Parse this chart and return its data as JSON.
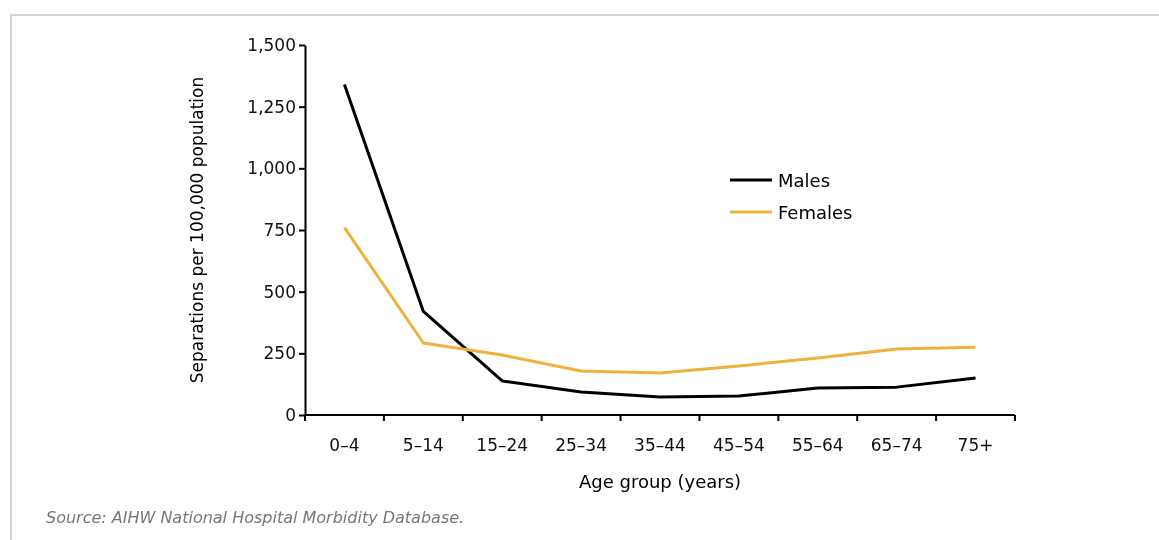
{
  "chart_data": {
    "type": "line",
    "xlabel": "Age group (years)",
    "ylabel": "Separations per 100,000 population",
    "categories": [
      "0–4",
      "5–14",
      "15–24",
      "25–34",
      "35–44",
      "45–54",
      "55–64",
      "65–74",
      "75+"
    ],
    "series": [
      {
        "name": "Males",
        "color": "#000000",
        "values": [
          1340,
          420,
          138,
          93,
          73,
          77,
          109,
          113,
          150
        ]
      },
      {
        "name": "Females",
        "color": "#f0b03c",
        "values": [
          760,
          292,
          243,
          178,
          170,
          199,
          231,
          268,
          275
        ]
      }
    ],
    "ylim": [
      0,
      1500
    ],
    "yticks": [
      0,
      {
        "value": 250,
        "label": "250"
      },
      {
        "value": 500,
        "label": "500"
      },
      {
        "value": 750,
        "label": "750"
      },
      {
        "value": 1000,
        "label": "1,000"
      },
      {
        "value": 1250,
        "label": "1,250"
      },
      {
        "value": 1500,
        "label": "1,500"
      }
    ],
    "grid": false,
    "legend": "top right",
    "marker": "none",
    "line_style": "solid",
    "annotations": [
      "Source: AIHW National Hospital Morbidity Database."
    ]
  }
}
